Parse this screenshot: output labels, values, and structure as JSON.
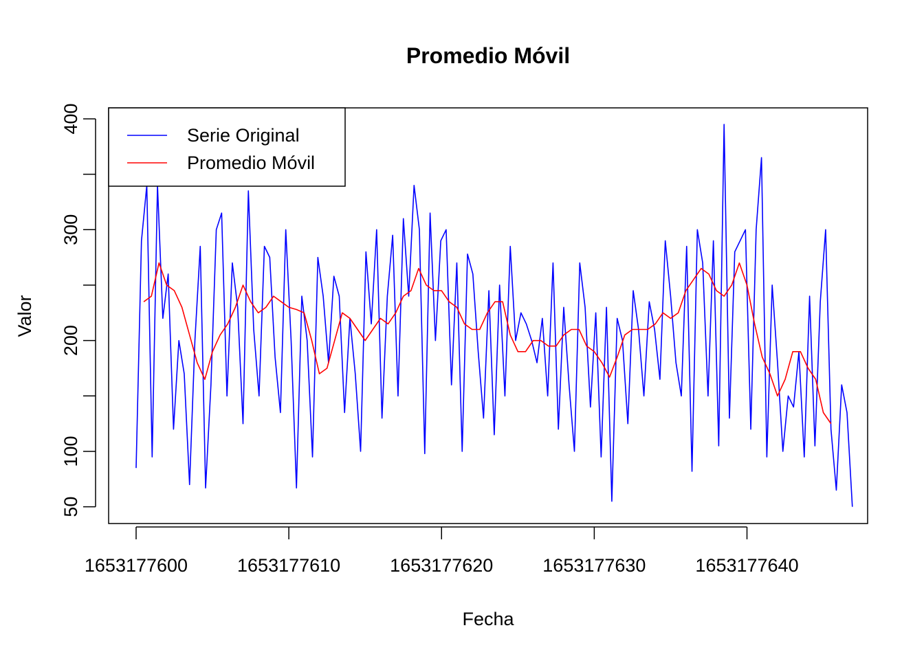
{
  "chart_data": {
    "type": "line",
    "title": "Promedio Móvil",
    "x_label": "Fecha",
    "y_label": "Valor",
    "xlim": [
      1653177598.2,
      1653177647.9
    ],
    "ylim": [
      34.9,
      409.9
    ],
    "xticks": [
      1653177600,
      1653177610,
      1653177620,
      1653177630,
      1653177640
    ],
    "yticks": [
      50,
      100,
      {
        "value": 150,
        "label": null
      },
      200,
      {
        "value": 250,
        "label": null
      },
      300,
      {
        "value": 350,
        "label": null
      },
      400
    ],
    "legend": "topleft",
    "series": [
      {
        "name": "Serie Original",
        "color": "#0000ff",
        "x": [
          1653177600,
          1653177600.35,
          1653177600.7,
          1653177601.05,
          1653177601.4,
          1653177601.75,
          1653177602.1,
          1653177602.45,
          1653177602.8,
          1653177603.15,
          1653177603.5,
          1653177603.85,
          1653177604.2,
          1653177604.55,
          1653177604.9,
          1653177605.25,
          1653177605.6,
          1653177605.95,
          1653177606.3,
          1653177606.65,
          1653177607,
          1653177607.35,
          1653177607.7,
          1653177608.05,
          1653177608.4,
          1653177608.75,
          1653177609.1,
          1653177609.45,
          1653177609.8,
          1653177610.15,
          1653177610.5,
          1653177610.85,
          1653177611.2,
          1653177611.55,
          1653177611.9,
          1653177612.25,
          1653177612.6,
          1653177612.95,
          1653177613.3,
          1653177613.65,
          1653177614,
          1653177614.35,
          1653177614.7,
          1653177615.05,
          1653177615.4,
          1653177615.75,
          1653177616.1,
          1653177616.45,
          1653177616.8,
          1653177617.15,
          1653177617.5,
          1653177617.85,
          1653177618.2,
          1653177618.55,
          1653177618.9,
          1653177619.25,
          1653177619.6,
          1653177619.95,
          1653177620.3,
          1653177620.65,
          1653177621,
          1653177621.35,
          1653177621.7,
          1653177622.05,
          1653177622.4,
          1653177622.75,
          1653177623.1,
          1653177623.45,
          1653177623.8,
          1653177624.15,
          1653177624.5,
          1653177624.85,
          1653177625.2,
          1653177625.55,
          1653177625.9,
          1653177626.25,
          1653177626.6,
          1653177626.95,
          1653177627.3,
          1653177627.65,
          1653177628,
          1653177628.35,
          1653177628.7,
          1653177629.05,
          1653177629.4,
          1653177629.75,
          1653177630.1,
          1653177630.45,
          1653177630.8,
          1653177631.15,
          1653177631.5,
          1653177631.85,
          1653177632.2,
          1653177632.55,
          1653177632.9,
          1653177633.25,
          1653177633.6,
          1653177633.95,
          1653177634.3,
          1653177634.65,
          1653177635,
          1653177635.35,
          1653177635.7,
          1653177636.05,
          1653177636.4,
          1653177636.75,
          1653177637.1,
          1653177637.45,
          1653177637.8,
          1653177638.15,
          1653177638.5,
          1653177638.85,
          1653177639.2,
          1653177639.55,
          1653177639.9,
          1653177640.25,
          1653177640.6,
          1653177640.95,
          1653177641.3,
          1653177641.65,
          1653177642,
          1653177642.35,
          1653177642.7,
          1653177643.05,
          1653177643.4,
          1653177643.75,
          1653177644.1,
          1653177644.45,
          1653177644.8,
          1653177645.15,
          1653177645.5,
          1653177645.85,
          1653177646.2,
          1653177646.55,
          1653177646.9
        ],
        "values": [
          85,
          290,
          340,
          95,
          340,
          220,
          260,
          120,
          200,
          170,
          70,
          200,
          285,
          67,
          160,
          300,
          315,
          150,
          270,
          230,
          125,
          335,
          210,
          150,
          285,
          275,
          185,
          135,
          300,
          200,
          67,
          240,
          200,
          95,
          275,
          240,
          180,
          258,
          240,
          135,
          220,
          170,
          100,
          280,
          215,
          300,
          130,
          240,
          295,
          150,
          310,
          240,
          340,
          300,
          98,
          315,
          200,
          290,
          300,
          160,
          270,
          100,
          278,
          260,
          190,
          130,
          245,
          115,
          250,
          150,
          285,
          200,
          225,
          215,
          200,
          180,
          220,
          150,
          270,
          120,
          230,
          160,
          100,
          270,
          230,
          140,
          225,
          95,
          230,
          55,
          220,
          200,
          125,
          245,
          210,
          150,
          235,
          210,
          165,
          290,
          240,
          180,
          150,
          285,
          82,
          300,
          270,
          150,
          290,
          105,
          395,
          130,
          280,
          290,
          300,
          120,
          300,
          365,
          95,
          250,
          180,
          100,
          150,
          140,
          190,
          95,
          240,
          105,
          235,
          300,
          120,
          65,
          160,
          135,
          50
        ]
      },
      {
        "name": "Promedio Móvil",
        "color": "#ff0000",
        "x": [
          1653177600.5,
          1653177601,
          1653177601.5,
          1653177602,
          1653177602.5,
          1653177603,
          1653177603.5,
          1653177604,
          1653177604.5,
          1653177605,
          1653177605.5,
          1653177606,
          1653177606.5,
          1653177607,
          1653177607.5,
          1653177608,
          1653177608.5,
          1653177609,
          1653177609.5,
          1653177610,
          1653177610.5,
          1653177611,
          1653177611.5,
          1653177612,
          1653177612.5,
          1653177613,
          1653177613.5,
          1653177614,
          1653177614.5,
          1653177615,
          1653177615.5,
          1653177616,
          1653177616.5,
          1653177617,
          1653177617.5,
          1653177618,
          1653177618.5,
          1653177619,
          1653177619.5,
          1653177620,
          1653177620.5,
          1653177621,
          1653177621.5,
          1653177622,
          1653177622.5,
          1653177623,
          1653177623.5,
          1653177624,
          1653177624.5,
          1653177625,
          1653177625.5,
          1653177626,
          1653177626.5,
          1653177627,
          1653177627.5,
          1653177628,
          1653177628.5,
          1653177629,
          1653177629.5,
          1653177630,
          1653177630.5,
          1653177631,
          1653177631.5,
          1653177632,
          1653177632.5,
          1653177633,
          1653177633.5,
          1653177634,
          1653177634.5,
          1653177635,
          1653177635.5,
          1653177636,
          1653177636.5,
          1653177637,
          1653177637.5,
          1653177638,
          1653177638.5,
          1653177639,
          1653177639.5,
          1653177640,
          1653177640.5,
          1653177641,
          1653177641.5,
          1653177642,
          1653177642.5,
          1653177643,
          1653177643.5,
          1653177644,
          1653177644.5,
          1653177645,
          1653177645.5
        ],
        "values": [
          235,
          240,
          270,
          250,
          245,
          230,
          205,
          180,
          165,
          190,
          205,
          215,
          230,
          250,
          235,
          225,
          230,
          240,
          235,
          230,
          228,
          225,
          200,
          170,
          175,
          200,
          225,
          220,
          210,
          200,
          210,
          220,
          215,
          225,
          240,
          245,
          265,
          250,
          245,
          245,
          235,
          230,
          215,
          210,
          210,
          225,
          235,
          235,
          205,
          190,
          190,
          200,
          200,
          195,
          195,
          205,
          210,
          210,
          195,
          190,
          180,
          167,
          185,
          205,
          210,
          210,
          210,
          215,
          225,
          220,
          225,
          245,
          255,
          265,
          260,
          245,
          240,
          250,
          270,
          250,
          215,
          185,
          170,
          150,
          165,
          190,
          190,
          175,
          165,
          135,
          125
        ]
      }
    ]
  }
}
